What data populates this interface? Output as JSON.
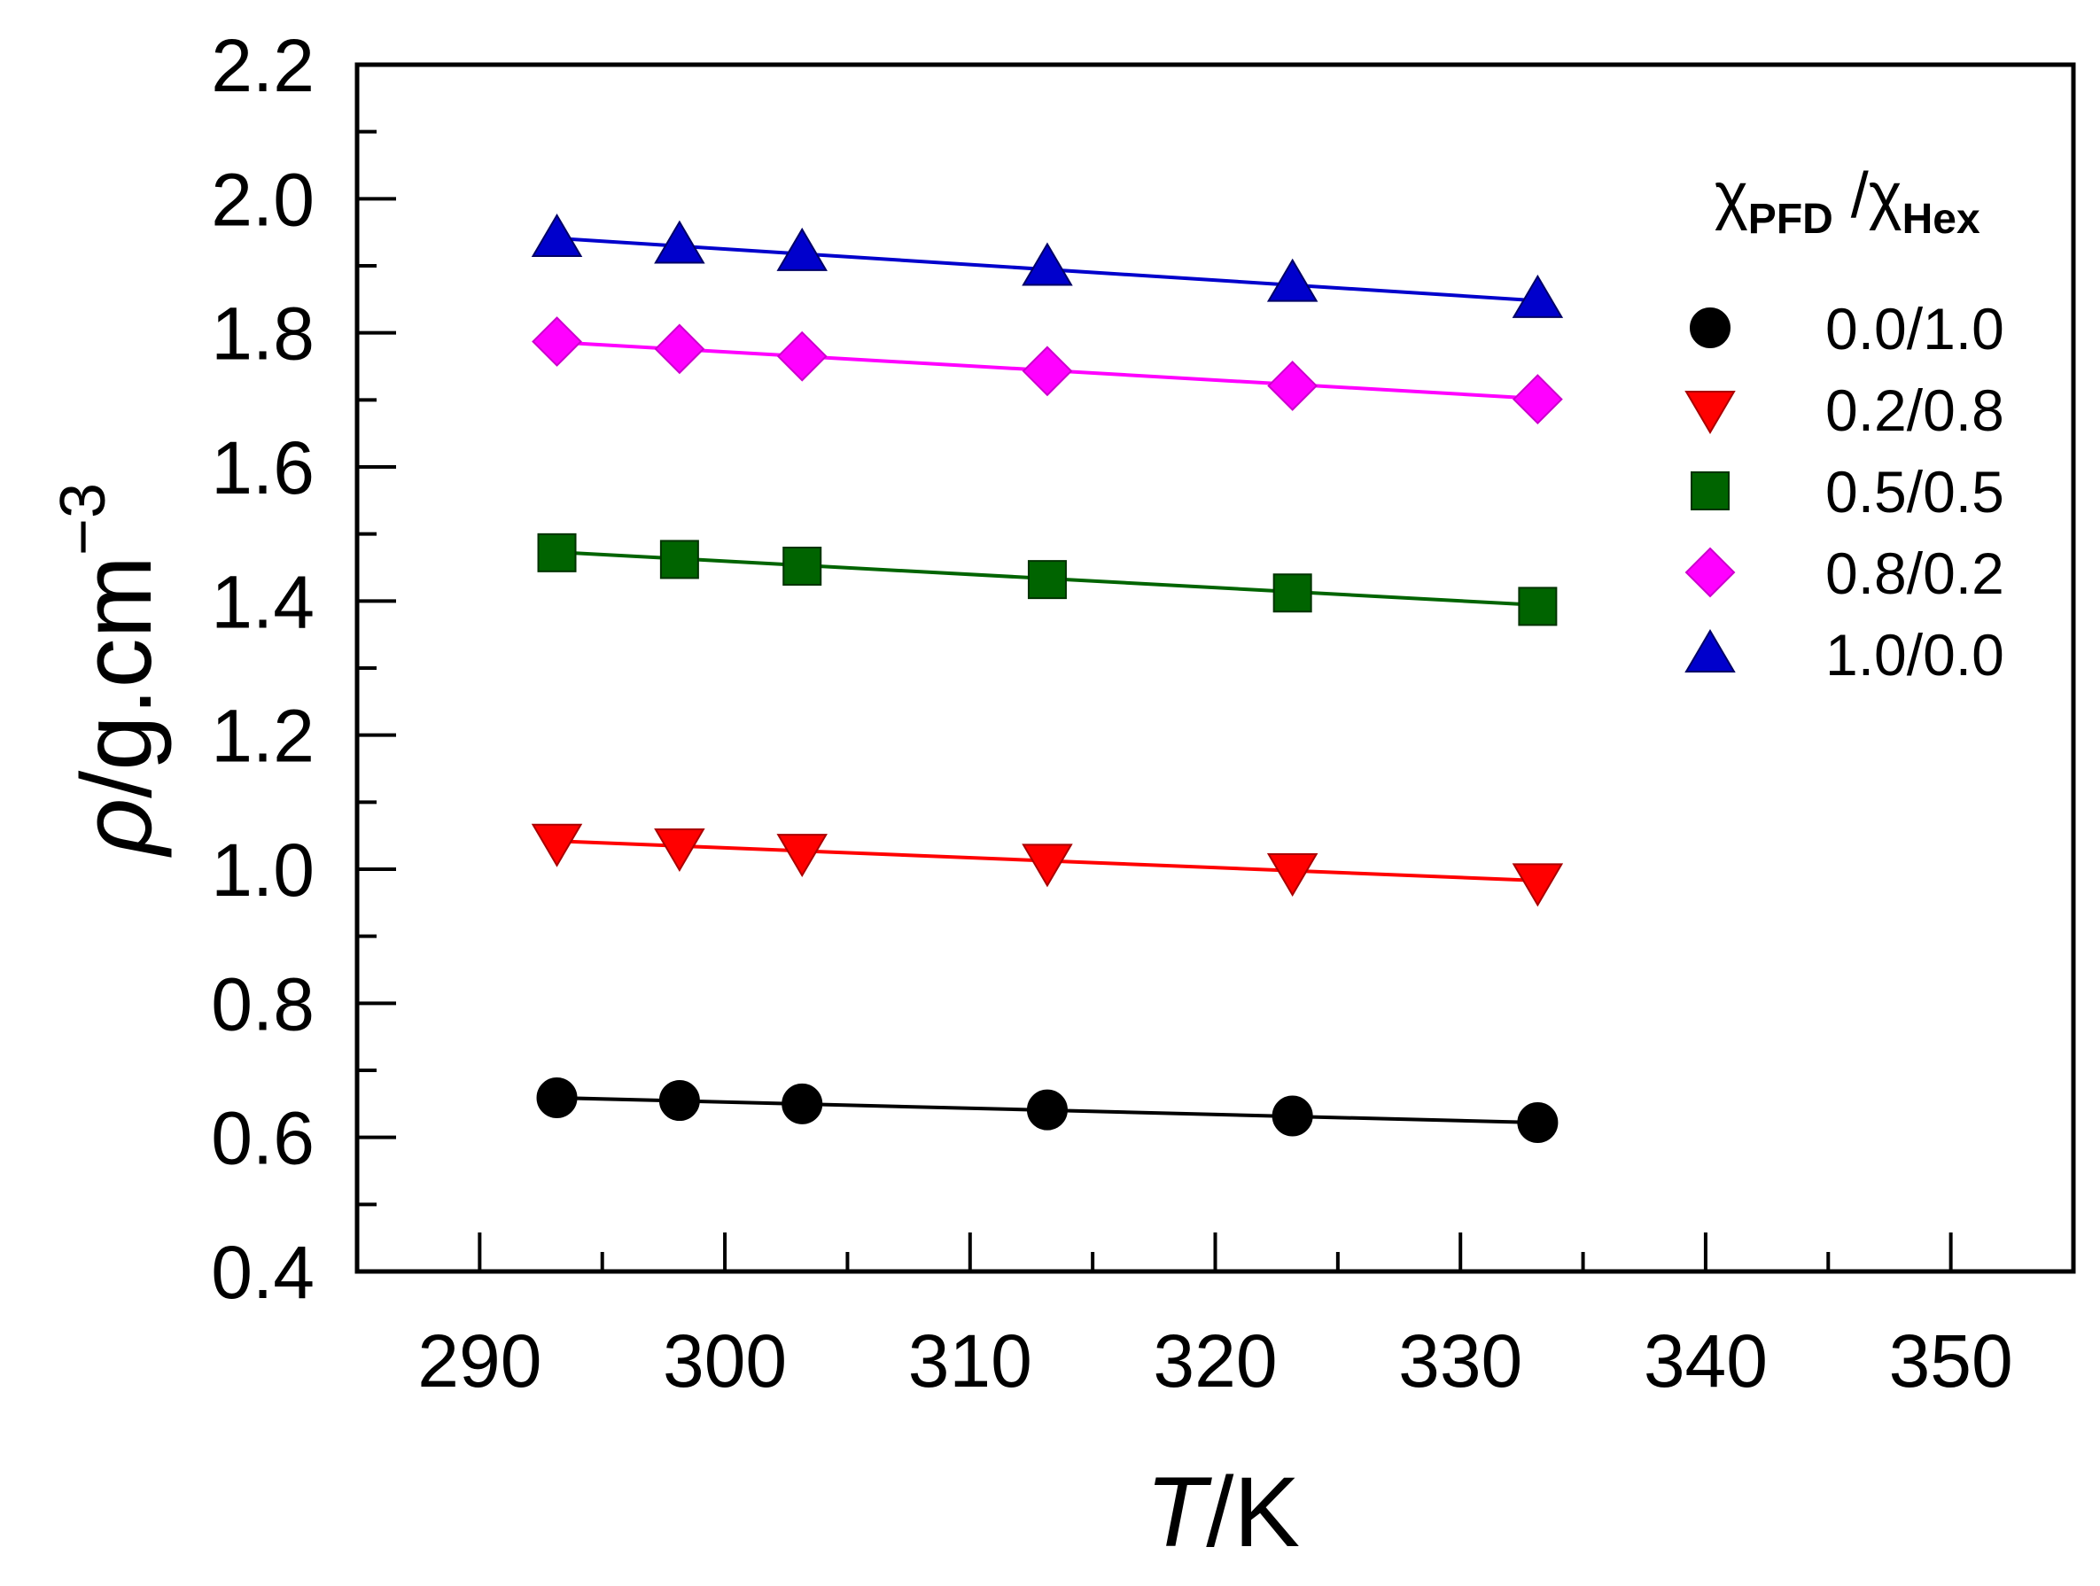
{
  "chart_data": {
    "type": "scatter",
    "title": "",
    "xlabel": {
      "symbol": "T",
      "unit": "/K"
    },
    "ylabel": {
      "symbol": "ρ",
      "unit": "/g.cm",
      "exponent": "−3"
    },
    "xlim": [
      285,
      355
    ],
    "ylim": [
      0.4,
      2.2
    ],
    "xticks": [
      290,
      300,
      310,
      320,
      330,
      340,
      350
    ],
    "yticks": [
      0.4,
      0.6,
      0.8,
      1.0,
      1.2,
      1.4,
      1.6,
      1.8,
      2.0,
      2.2
    ],
    "xtick_labels": [
      "290",
      "300",
      "310",
      "320",
      "330",
      "340",
      "350"
    ],
    "ytick_labels": [
      "0.4",
      "0.6",
      "0.8",
      "1.0",
      "1.2",
      "1.4",
      "1.6",
      "1.8",
      "2.0",
      "2.2"
    ],
    "grid": false,
    "legend": {
      "placement": "right",
      "title_parts": [
        "χ",
        "PFD",
        " /χ",
        "Hex"
      ]
    },
    "x": [
      293.15,
      298.15,
      303.15,
      313.15,
      323.15,
      333.15
    ],
    "series": [
      {
        "name": "0.0/1.0",
        "color": "#000000",
        "marker": "circle",
        "values": [
          0.659,
          0.655,
          0.65,
          0.641,
          0.632,
          0.622
        ],
        "fit": [
          0.659,
          0.622
        ]
      },
      {
        "name": "0.2/0.8",
        "color": "#ff0000",
        "marker": "triangle-down",
        "values": [
          1.04,
          1.033,
          1.025,
          1.01,
          0.996,
          0.981
        ],
        "fit": [
          1.042,
          0.983
        ]
      },
      {
        "name": "0.5/0.5",
        "color": "#006400",
        "marker": "square",
        "values": [
          1.472,
          1.462,
          1.452,
          1.432,
          1.412,
          1.392
        ],
        "fit": [
          1.473,
          1.394
        ]
      },
      {
        "name": "0.8/0.2",
        "color": "#ff00ff",
        "marker": "diamond",
        "values": [
          1.787,
          1.776,
          1.765,
          1.743,
          1.721,
          1.701
        ],
        "fit": [
          1.786,
          1.702
        ]
      },
      {
        "name": "1.0/0.0",
        "color": "#0000cc",
        "marker": "triangle-up",
        "values": [
          1.941,
          1.931,
          1.92,
          1.898,
          1.874,
          1.85
        ],
        "fit": [
          1.941,
          1.848
        ]
      }
    ]
  }
}
